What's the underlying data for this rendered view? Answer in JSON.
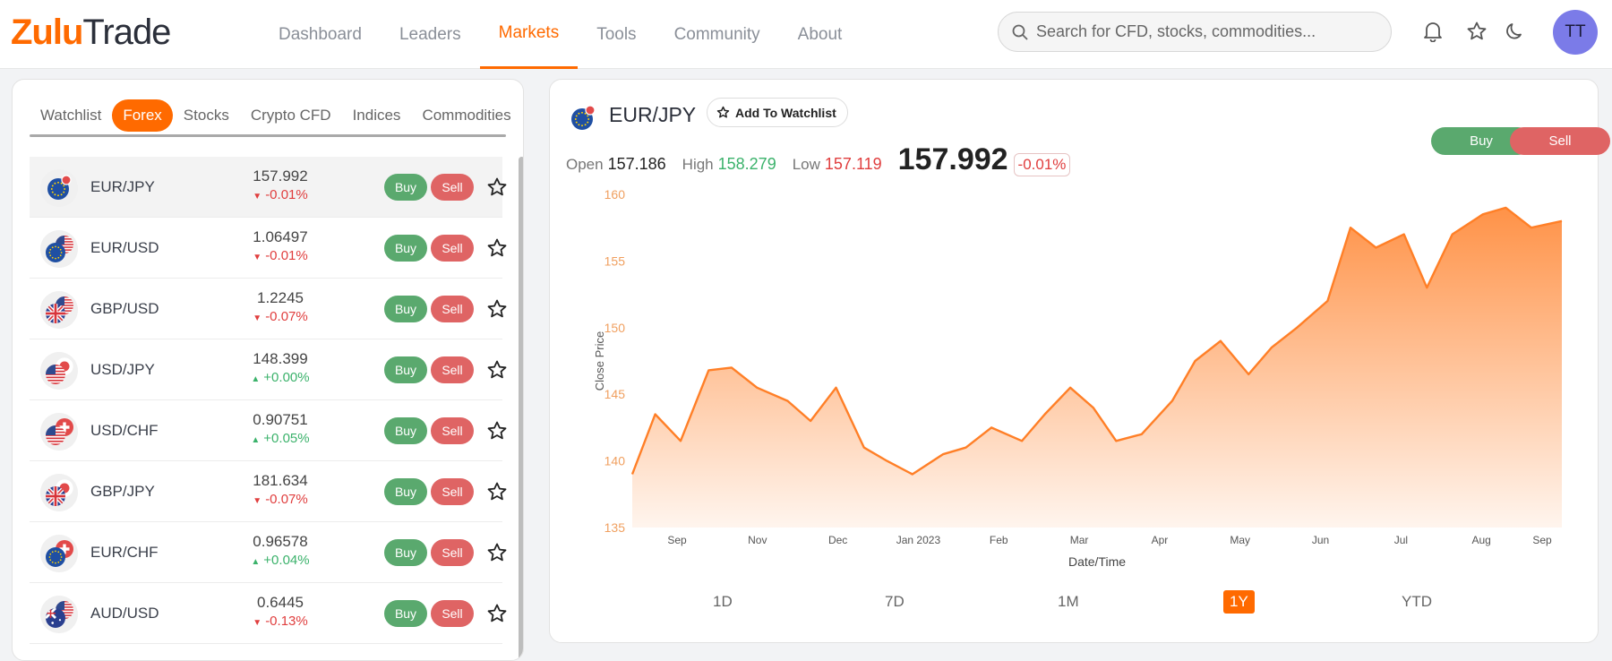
{
  "header": {
    "logo_zulu": "Zulu",
    "logo_trade": "Trade",
    "nav": [
      "Dashboard",
      "Leaders",
      "Markets",
      "Tools",
      "Community",
      "About"
    ],
    "active_nav": "Markets",
    "search_placeholder": "Search for CFD, stocks, commodities...",
    "avatar": "TT",
    "accent": "#ff6a00"
  },
  "left": {
    "tabs": [
      "Watchlist",
      "Forex",
      "Stocks",
      "Crypto CFD",
      "Indices",
      "Commodities"
    ],
    "active_tab": "Forex",
    "buy_label": "Buy",
    "sell_label": "Sell",
    "rows": [
      {
        "symbol": "EUR/JPY",
        "price": "157.992",
        "change": "-0.01%",
        "dir": "down",
        "flag": "eu"
      },
      {
        "symbol": "EUR/USD",
        "price": "1.06497",
        "change": "-0.01%",
        "dir": "down",
        "flag": "eu-us"
      },
      {
        "symbol": "GBP/USD",
        "price": "1.2245",
        "change": "-0.07%",
        "dir": "down",
        "flag": "uk-us"
      },
      {
        "symbol": "USD/JPY",
        "price": "148.399",
        "change": "+0.00%",
        "dir": "up",
        "flag": "us-jp"
      },
      {
        "symbol": "USD/CHF",
        "price": "0.90751",
        "change": "+0.05%",
        "dir": "up",
        "flag": "us-ch"
      },
      {
        "symbol": "GBP/JPY",
        "price": "181.634",
        "change": "-0.07%",
        "dir": "down",
        "flag": "uk-jp"
      },
      {
        "symbol": "EUR/CHF",
        "price": "0.96578",
        "change": "+0.04%",
        "dir": "up",
        "flag": "eu-ch"
      },
      {
        "symbol": "AUD/USD",
        "price": "0.6445",
        "change": "-0.13%",
        "dir": "down",
        "flag": "au-us"
      }
    ]
  },
  "detail": {
    "symbol": "EUR/JPY",
    "watchlist_label": "Add To Watchlist",
    "open_label": "Open",
    "open": "157.186",
    "high_label": "High",
    "high": "158.279",
    "low_label": "Low",
    "low": "157.119",
    "price": "157.992",
    "change": "-0.01%",
    "buy_label": "Buy",
    "sell_label": "Sell",
    "ranges": [
      "1D",
      "7D",
      "1M",
      "1Y",
      "YTD"
    ],
    "active_range": "1Y"
  },
  "chart_data": {
    "type": "area",
    "xlabel": "Date/Time",
    "ylabel": "Close Price",
    "ylim": [
      135,
      160
    ],
    "yticks": [
      135,
      140,
      145,
      150,
      155,
      160
    ],
    "x_ticks": [
      "Sep",
      "Nov",
      "Dec",
      "Jan 2023",
      "Feb",
      "Mar",
      "Apr",
      "May",
      "Jun",
      "Jul",
      "Aug",
      "Sep"
    ],
    "series": [
      {
        "name": "EUR/JPY",
        "color": "#ff7f27",
        "x": [
          "2022-09-01",
          "2022-09-10",
          "2022-09-20",
          "2022-10-01",
          "2022-10-10",
          "2022-10-20",
          "2022-11-01",
          "2022-11-10",
          "2022-11-20",
          "2022-12-01",
          "2022-12-10",
          "2022-12-20",
          "2023-01-01",
          "2023-01-10",
          "2023-01-20",
          "2023-02-01",
          "2023-02-10",
          "2023-02-20",
          "2023-03-01",
          "2023-03-10",
          "2023-03-20",
          "2023-04-01",
          "2023-04-10",
          "2023-04-20",
          "2023-05-01",
          "2023-05-10",
          "2023-05-20",
          "2023-06-01",
          "2023-06-10",
          "2023-06-20",
          "2023-07-01",
          "2023-07-10",
          "2023-07-20",
          "2023-08-01",
          "2023-08-10",
          "2023-08-20",
          "2023-09-01"
        ],
        "values": [
          139.0,
          143.5,
          141.5,
          146.8,
          147.0,
          145.5,
          144.5,
          143.0,
          145.5,
          141.0,
          140.0,
          139.0,
          140.5,
          141.0,
          142.5,
          141.5,
          143.5,
          145.5,
          144.0,
          141.5,
          142.0,
          144.5,
          147.5,
          149.0,
          146.5,
          148.5,
          150.0,
          152.0,
          157.5,
          156.0,
          157.0,
          153.0,
          157.0,
          158.5,
          159.0,
          157.5,
          158.0
        ]
      }
    ]
  }
}
